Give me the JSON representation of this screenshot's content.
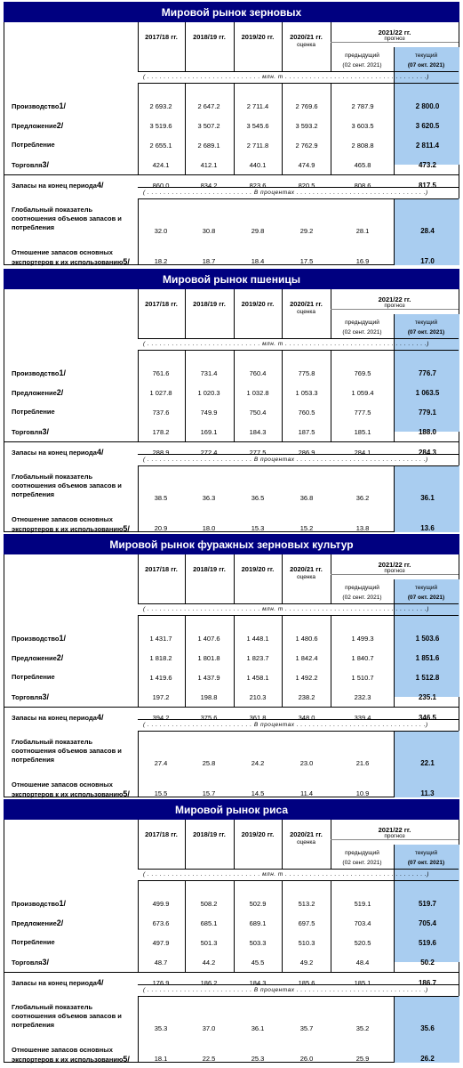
{
  "columns": {
    "years": [
      "2017/18 гг.",
      "2018/19 гг.",
      "2019/20 гг.",
      "2020/21 гг."
    ],
    "estimate": "оценка",
    "forecast_year": "2021/22 гг.",
    "forecast": "прогноз",
    "previous": "предыдущий",
    "previous_date": "(02 сент. 2021)",
    "current": "текущий",
    "current_date": "(07 окт. 2021)"
  },
  "units": {
    "mln_t": "( . . . . . . . . . . . . . . . . . . . . . . . . . . . . млн. т . . . . . . . . . . . . . . . . . . . . . . . . . . . . . . . . . . .)",
    "percent": "( . . . . . . . . . . . . . . . . . . . . . . . . . . В процентах . . . . . . . . . . . . . . . . . . . . . . . . . . . . . . . .)"
  },
  "rows": {
    "production": "Производство",
    "supply": "Предложение",
    "consumption": "Потребление",
    "trade": "Торговля",
    "stocks": "Запасы на конец периода",
    "ratio": "Глобальный показатель соотношения объемов запасов и потребления",
    "exporters": "Отношение запасов основных экспортеров к их использованию"
  },
  "footnotes": {
    "production": "1/",
    "supply": "2/",
    "trade": "3/",
    "stocks": "4/",
    "exporters": "5/"
  },
  "tables": [
    {
      "title": "Мировой рынок зерновых",
      "values": {
        "production": [
          "2 693.2",
          "2 647.2",
          "2 711.4",
          "2 769.6",
          "2 787.9",
          "2 800.0"
        ],
        "supply": [
          "3 519.6",
          "3 507.2",
          "3 545.6",
          "3 593.2",
          "3 603.5",
          "3 620.5"
        ],
        "consumption": [
          "2 655.1",
          "2 689.1",
          "2 711.8",
          "2 762.9",
          "2 808.8",
          "2 811.4"
        ],
        "trade": [
          "424.1",
          "412.1",
          "440.1",
          "474.9",
          "465.8",
          "473.2"
        ],
        "stocks": [
          "860.0",
          "834.2",
          "823.6",
          "820.5",
          "808.6",
          "817.5"
        ],
        "ratio": [
          "32.0",
          "30.8",
          "29.8",
          "29.2",
          "28.1",
          "28.4"
        ],
        "exporters": [
          "18.2",
          "18.7",
          "18.4",
          "17.5",
          "16.9",
          "17.0"
        ]
      }
    },
    {
      "title": "Мировой рынок пшеницы",
      "values": {
        "production": [
          "761.6",
          "731.4",
          "760.4",
          "775.8",
          "769.5",
          "776.7"
        ],
        "supply": [
          "1 027.8",
          "1 020.3",
          "1 032.8",
          "1 053.3",
          "1 059.4",
          "1 063.5"
        ],
        "consumption": [
          "737.6",
          "749.9",
          "750.4",
          "760.5",
          "777.5",
          "779.1"
        ],
        "trade": [
          "178.2",
          "169.1",
          "184.3",
          "187.5",
          "185.1",
          "188.0"
        ],
        "stocks": [
          "288.9",
          "272.4",
          "277.5",
          "286.9",
          "284.1",
          "284.3"
        ],
        "ratio": [
          "38.5",
          "36.3",
          "36.5",
          "36.8",
          "36.2",
          "36.1"
        ],
        "exporters": [
          "20.9",
          "18.0",
          "15.3",
          "15.2",
          "13.8",
          "13.6"
        ]
      }
    },
    {
      "title": "Мировой рынок фуражных зерновых культур",
      "values": {
        "production": [
          "1 431.7",
          "1 407.6",
          "1 448.1",
          "1 480.6",
          "1 499.3",
          "1 503.6"
        ],
        "supply": [
          "1 818.2",
          "1 801.8",
          "1 823.7",
          "1 842.4",
          "1 840.7",
          "1 851.6"
        ],
        "consumption": [
          "1 419.6",
          "1 437.9",
          "1 458.1",
          "1 492.2",
          "1 510.7",
          "1 512.8"
        ],
        "trade": [
          "197.2",
          "198.8",
          "210.3",
          "238.2",
          "232.3",
          "235.1"
        ],
        "stocks": [
          "394.2",
          "375.6",
          "361.8",
          "348.0",
          "339.4",
          "346.5"
        ],
        "ratio": [
          "27.4",
          "25.8",
          "24.2",
          "23.0",
          "21.6",
          "22.1"
        ],
        "exporters": [
          "15.5",
          "15.7",
          "14.5",
          "11.4",
          "10.9",
          "11.3"
        ]
      }
    },
    {
      "title": "Мировой рынок риса",
      "values": {
        "production": [
          "499.9",
          "508.2",
          "502.9",
          "513.2",
          "519.1",
          "519.7"
        ],
        "supply": [
          "673.6",
          "685.1",
          "689.1",
          "697.5",
          "703.4",
          "705.4"
        ],
        "consumption": [
          "497.9",
          "501.3",
          "503.3",
          "510.3",
          "520.5",
          "519.6"
        ],
        "trade": [
          "48.7",
          "44.2",
          "45.5",
          "49.2",
          "48.4",
          "50.2"
        ],
        "stocks": [
          "176.9",
          "186.2",
          "184.3",
          "185.6",
          "185.1",
          "186.7"
        ],
        "ratio": [
          "35.3",
          "37.0",
          "36.1",
          "35.7",
          "35.2",
          "35.6"
        ],
        "exporters": [
          "18.1",
          "22.5",
          "25.3",
          "26.0",
          "25.9",
          "26.2"
        ]
      }
    }
  ]
}
